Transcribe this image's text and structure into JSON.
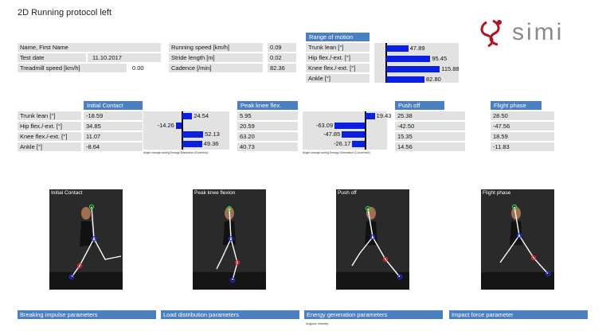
{
  "title": "2D Running protocol left",
  "logo": {
    "text": "simi"
  },
  "info": {
    "name_label": "Name, First Name",
    "name_value": "",
    "date_label": "Test date",
    "date_value": "11.10.2017",
    "treadmill_label": "Treadmill speed [km/h]",
    "treadmill_value": "0.00"
  },
  "running": {
    "speed_label": "Running speed [km/h]",
    "speed_value": "0.09",
    "stride_label": "Stride length [m]",
    "stride_value": "0.02",
    "cadence_label": "Cadence [/min]",
    "cadence_value": "82.36"
  },
  "rom": {
    "header": "Range of motion",
    "items": [
      {
        "label": "Trunk lean [°]",
        "value": 47.89,
        "text": "47.89"
      },
      {
        "label": "Hip flex./-ext. [°]",
        "value": 95.45,
        "text": "95.45"
      },
      {
        "label": "Knee flex./-ext. [°]",
        "value": 115.88,
        "text": "115.88"
      },
      {
        "label": "Ankle [°]",
        "value": 82.8,
        "text": "82.80"
      }
    ]
  },
  "phases": {
    "row_labels": [
      "Trunk lean [°]",
      "Hip flex./-ext. [°]",
      "Knee flex./-ext. [°]",
      "Ankle [°]"
    ],
    "initial_contact": {
      "header": "Initial Contact",
      "values": [
        "-18.59",
        "34.85",
        "11.07",
        "-8.64"
      ]
    },
    "peak_knee": {
      "header": "Peak knee flex.",
      "values": [
        "5.95",
        "20.59",
        "63.20",
        "40.73"
      ]
    },
    "push_off": {
      "header": "Push off",
      "values": [
        "25.38",
        "-42.50",
        "15.35",
        "14.56"
      ]
    },
    "flight": {
      "header": "Flight phase",
      "values": [
        "28.50",
        "-47.56",
        "18.59",
        "-11.83"
      ]
    }
  },
  "absorption_chart": {
    "caption": "Angle change during Energy Absorption (Eccentric)",
    "items": [
      {
        "value": 24.54,
        "text": "24.54"
      },
      {
        "value": -14.26,
        "text": "-14.26"
      },
      {
        "value": 52.13,
        "text": "52.13"
      },
      {
        "value": 49.36,
        "text": "49.36"
      }
    ]
  },
  "generation_chart": {
    "caption": "Angle change during Energy Generation (Concentric)",
    "items": [
      {
        "value": 19.43,
        "text": "19.43"
      },
      {
        "value": -63.09,
        "text": "-63.09"
      },
      {
        "value": -47.85,
        "text": "-47.85"
      },
      {
        "value": -26.17,
        "text": "-26.17"
      }
    ]
  },
  "photos": [
    {
      "label": "Initial Contact"
    },
    {
      "label": "Peak knee flexion"
    },
    {
      "label": "Push off"
    },
    {
      "label": "Flight phase"
    }
  ],
  "sections": {
    "breaking": "Breaking impulse parameters",
    "load": "Load distribution parameters",
    "energy": "Energy generation parameters",
    "impact": "Impact force parameter",
    "angular_note": "Angular velocity"
  },
  "colors": {
    "header": "#4a7fc4",
    "bar": "#0b1fe0",
    "cell": "#e2e2e2"
  }
}
